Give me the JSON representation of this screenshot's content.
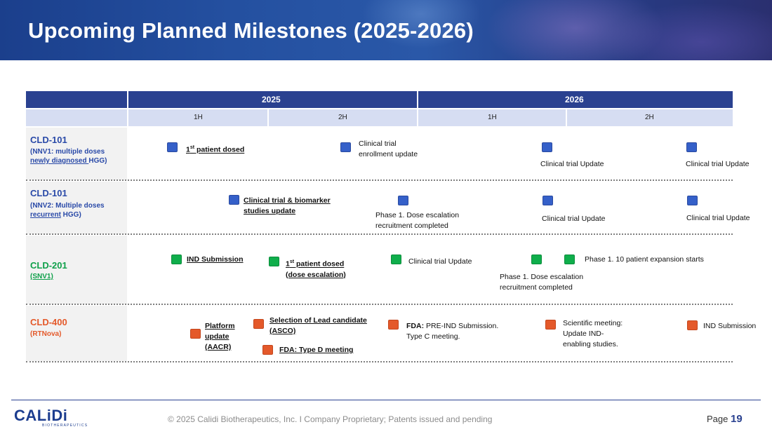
{
  "title": "Upcoming Planned Milestones (2025-2026)",
  "timeline": {
    "years": [
      "2025",
      "2026"
    ],
    "halves": [
      "1H",
      "2H",
      "1H",
      "2H"
    ]
  },
  "projects": [
    {
      "name": "CLD-101",
      "sub1": "(NNV1: multiple doses",
      "sub2a": "newly diagnosed ",
      "sub2b": "HGG)",
      "color": "#2a4aa8"
    },
    {
      "name": "CLD-101",
      "sub1": "(NNV2: Multiple doses",
      "sub2a": "recurrent",
      "sub2b": " HGG)",
      "color": "#2a4aa8"
    },
    {
      "name": "CLD-201",
      "sub1": "(SNV1)",
      "color": "#0fa04a"
    },
    {
      "name": "CLD-400",
      "sub1": "(RTNova)",
      "color": "#e4592a"
    }
  ],
  "milestones": {
    "r1": {
      "m1": "1st patient dosed",
      "m2a": "Clinical trial",
      "m2b": "enrollment update",
      "m3": "Clinical trial Update",
      "m4": "Clinical trial Update"
    },
    "r2": {
      "m1a": "Clinical trial & biomarker",
      "m1b": "studies update",
      "m2a": "Phase 1. Dose escalation",
      "m2b": "recruitment completed",
      "m3": "Clinical trial Update",
      "m4": "Clinical trial Update"
    },
    "r3": {
      "m1": "IND Submission",
      "m2a": "1st patient dosed",
      "m2b": "(dose escalation)",
      "m3": "Clinical trial Update",
      "m4a": "Phase 1. Dose escalation",
      "m4b": "recruitment completed",
      "m5": "Phase 1. 10 patient expansion starts"
    },
    "r4": {
      "m1a": "Platform",
      "m1b": "update",
      "m1c": "(AACR)",
      "m2a": "Selection of Lead candidate",
      "m2b": "(ASCO)",
      "m3": "FDA: Type D meeting",
      "m4a_bold": "FDA:",
      "m4a_rest": " PRE-IND Submission.",
      "m4b": "Type C meeting.",
      "m5a": "Scientific meeting:",
      "m5b": "Update IND-",
      "m5c": "enabling studies.",
      "m6": "IND Submission"
    }
  },
  "footer": {
    "logo": "CALiDi",
    "logo_sub": "BIOTHERAPEUTICS",
    "copyright": "© 2025 Calidi Biotherapeutics, Inc. I  Company Proprietary; Patents issued and pending",
    "page_label": "Page",
    "page_number": "19"
  }
}
